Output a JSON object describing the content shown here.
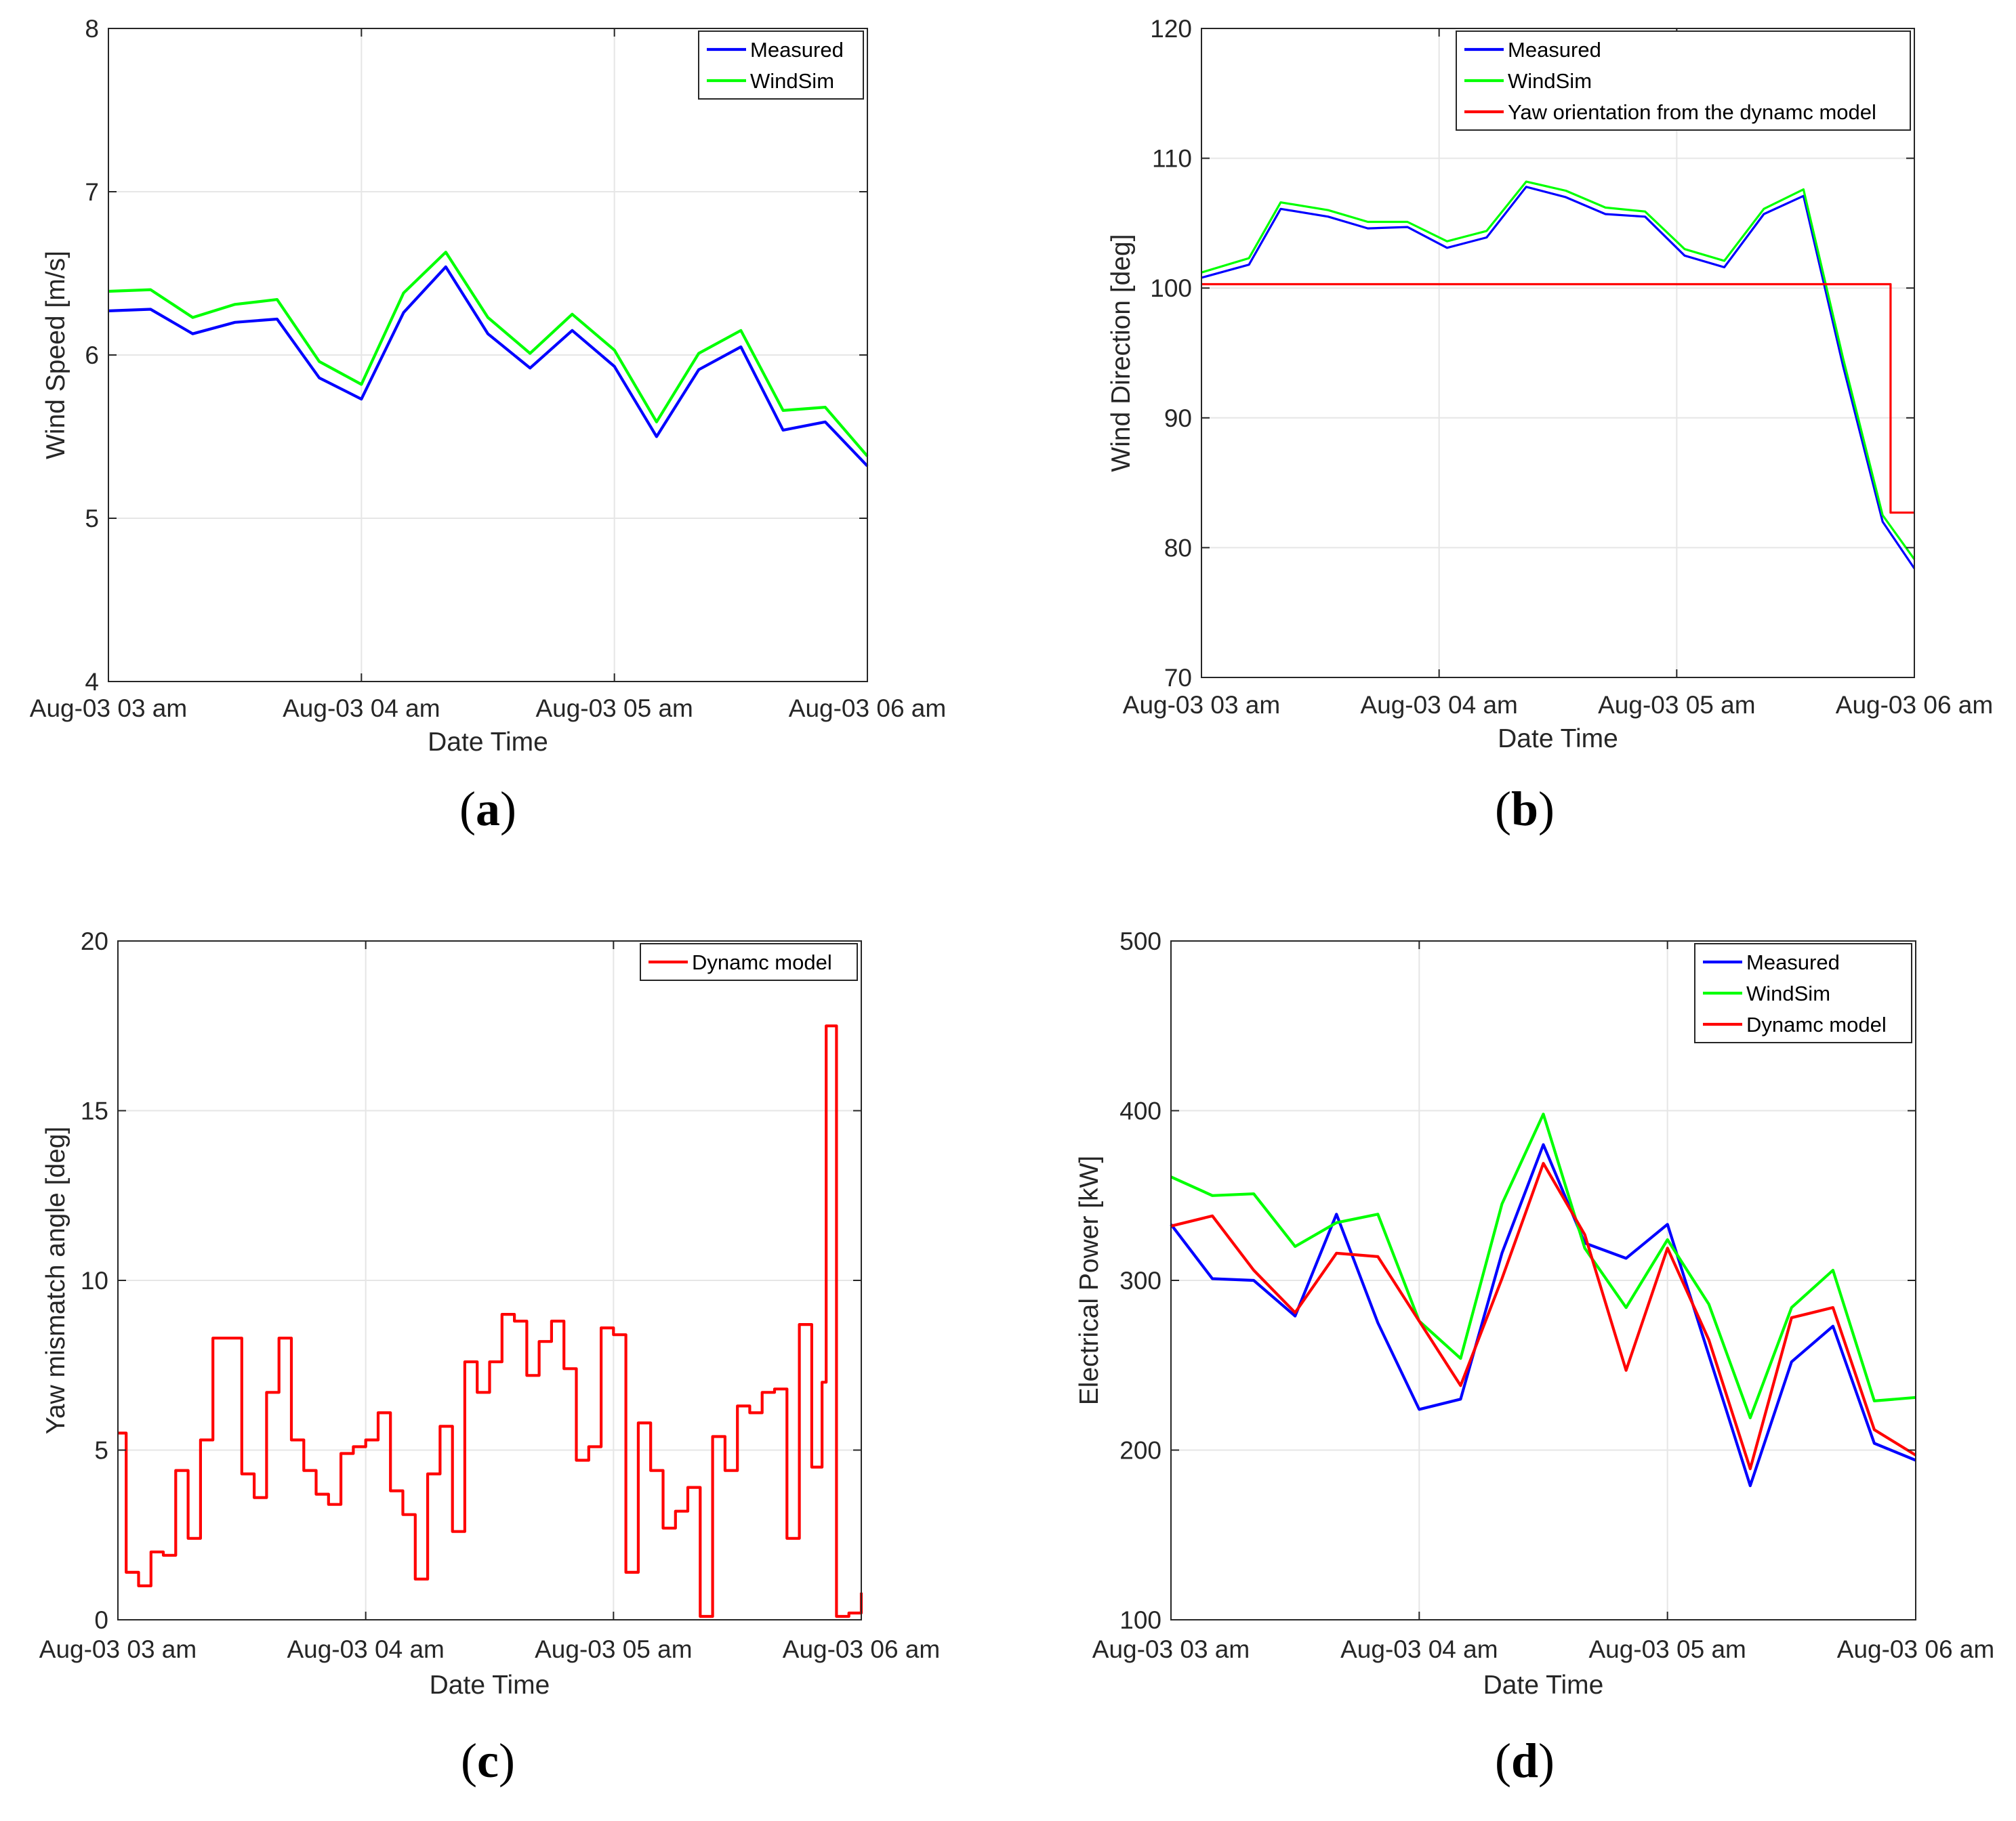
{
  "chart_data": [
    {
      "panel_label": "a",
      "type": "line",
      "xlabel": "Date Time",
      "ylabel": "Wind Speed [m/s]",
      "xlim": [
        0,
        180
      ],
      "ylim": [
        4,
        8
      ],
      "x_ticks": [
        {
          "value": 0,
          "label": "Aug-03 03 am"
        },
        {
          "value": 60,
          "label": "Aug-03 04 am"
        },
        {
          "value": 120,
          "label": "Aug-03 05 am"
        },
        {
          "value": 180,
          "label": "Aug-03 06 am"
        }
      ],
      "y_ticks": [
        4,
        5,
        6,
        7,
        8
      ],
      "grid": true,
      "legend_position": "top-right",
      "x": [
        0,
        10,
        20,
        30,
        40,
        50,
        60,
        70,
        80,
        90,
        100,
        110,
        120,
        130,
        140,
        150,
        160,
        170,
        180
      ],
      "series": [
        {
          "name": "Measured",
          "color": "#0000ff",
          "values": [
            6.27,
            6.28,
            6.13,
            6.2,
            6.22,
            5.86,
            5.73,
            6.26,
            6.54,
            6.13,
            5.92,
            6.15,
            5.93,
            5.5,
            5.91,
            6.05,
            5.54,
            5.59,
            5.32
          ]
        },
        {
          "name": "WindSim",
          "color": "#00ff00",
          "values": [
            6.39,
            6.4,
            6.23,
            6.31,
            6.34,
            5.96,
            5.82,
            6.38,
            6.63,
            6.23,
            6.01,
            6.25,
            6.03,
            5.59,
            6.01,
            6.15,
            5.66,
            5.68,
            5.38
          ]
        }
      ]
    },
    {
      "panel_label": "b",
      "type": "line",
      "xlabel": "Date Time",
      "ylabel": "Wind Direction [deg]",
      "xlim": [
        0,
        180
      ],
      "ylim": [
        70,
        120
      ],
      "x_ticks": [
        {
          "value": 0,
          "label": "Aug-03 03 am"
        },
        {
          "value": 60,
          "label": "Aug-03 04 am"
        },
        {
          "value": 120,
          "label": "Aug-03 05 am"
        },
        {
          "value": 180,
          "label": "Aug-03 06 am"
        }
      ],
      "y_ticks": [
        70,
        80,
        90,
        100,
        110,
        120
      ],
      "grid": true,
      "legend_position": "top-right",
      "series": [
        {
          "name": "Measured",
          "color": "#0000ff",
          "x": [
            0,
            12,
            20,
            32,
            42,
            52,
            62,
            72,
            82,
            92,
            102,
            112,
            122,
            132,
            142,
            152,
            162,
            172,
            180
          ],
          "values": [
            100.8,
            101.8,
            106.1,
            105.5,
            104.6,
            104.7,
            103.1,
            103.9,
            107.8,
            107.0,
            105.7,
            105.5,
            102.5,
            101.6,
            105.7,
            107.1,
            94.0,
            82.0,
            78.4
          ]
        },
        {
          "name": "WindSim",
          "color": "#00ff00",
          "x": [
            0,
            12,
            20,
            32,
            42,
            52,
            62,
            72,
            82,
            92,
            102,
            112,
            122,
            132,
            142,
            152,
            162,
            172,
            180
          ],
          "values": [
            101.2,
            102.3,
            106.6,
            106.0,
            105.1,
            105.1,
            103.6,
            104.4,
            108.2,
            107.5,
            106.2,
            105.9,
            103.0,
            102.1,
            106.1,
            107.6,
            94.6,
            82.5,
            79.1
          ]
        },
        {
          "name": "Yaw orientation from the dynamc model",
          "color": "#ff0000",
          "x": [
            0,
            174,
            174,
            180
          ],
          "values": [
            100.3,
            100.3,
            82.7,
            82.7
          ]
        }
      ]
    },
    {
      "panel_label": "c",
      "type": "line",
      "xlabel": "Date Time",
      "ylabel": "Yaw mismatch angle [deg]",
      "xlim": [
        0,
        180
      ],
      "ylim": [
        0,
        20
      ],
      "x_ticks": [
        {
          "value": 0,
          "label": "Aug-03 03 am"
        },
        {
          "value": 60,
          "label": "Aug-03 04 am"
        },
        {
          "value": 120,
          "label": "Aug-03 05 am"
        },
        {
          "value": 180,
          "label": "Aug-03 06 am"
        }
      ],
      "y_ticks": [
        0,
        5,
        10,
        15,
        20
      ],
      "grid": true,
      "legend_position": "top-right",
      "step": true,
      "series": [
        {
          "name": "Dynamc model",
          "color": "#ff0000",
          "x": [
            0,
            2,
            5,
            8,
            11,
            14,
            17,
            20,
            23,
            27,
            30,
            33,
            36,
            39,
            42,
            45,
            48,
            51,
            54,
            57,
            60,
            63,
            66,
            69,
            72,
            75,
            78,
            81,
            84,
            87,
            90,
            93,
            96,
            99,
            102,
            105,
            108,
            111,
            114,
            117,
            120,
            123,
            126,
            129,
            132,
            135,
            138,
            141,
            144,
            147,
            150,
            153,
            156,
            159,
            162,
            165,
            168,
            170.5,
            171.5,
            174,
            177,
            180
          ],
          "values": [
            5.5,
            1.4,
            1.0,
            2.0,
            1.9,
            4.4,
            2.4,
            5.3,
            8.3,
            8.3,
            4.3,
            3.6,
            6.7,
            8.3,
            5.3,
            4.4,
            3.7,
            3.4,
            4.9,
            5.1,
            5.3,
            6.1,
            3.8,
            3.1,
            1.2,
            4.3,
            5.7,
            2.6,
            7.6,
            6.7,
            7.6,
            9.0,
            8.8,
            7.2,
            8.2,
            8.8,
            7.4,
            4.7,
            5.1,
            8.6,
            8.4,
            1.4,
            5.8,
            4.4,
            2.7,
            3.2,
            3.9,
            0.1,
            5.4,
            4.4,
            6.3,
            6.1,
            6.7,
            6.8,
            2.4,
            8.7,
            4.5,
            7.0,
            17.5,
            0.1,
            0.2,
            0.8
          ]
        }
      ]
    },
    {
      "panel_label": "d",
      "type": "line",
      "xlabel": "Date Time",
      "ylabel": "Electrical Power [kW]",
      "xlim": [
        0,
        180
      ],
      "ylim": [
        100,
        500
      ],
      "x_ticks": [
        {
          "value": 0,
          "label": "Aug-03 03 am"
        },
        {
          "value": 60,
          "label": "Aug-03 04 am"
        },
        {
          "value": 120,
          "label": "Aug-03 05 am"
        },
        {
          "value": 180,
          "label": "Aug-03 06 am"
        }
      ],
      "y_ticks": [
        100,
        200,
        300,
        400,
        500
      ],
      "grid": true,
      "legend_position": "top-right",
      "x": [
        0,
        10,
        20,
        30,
        40,
        50,
        60,
        70,
        80,
        90,
        100,
        110,
        120,
        130,
        140,
        150,
        160,
        170,
        180
      ],
      "series": [
        {
          "name": "Measured",
          "color": "#0000ff",
          "values": [
            333,
            301,
            300,
            279,
            339,
            275,
            224,
            230,
            316,
            380,
            322,
            313,
            333,
            256,
            179,
            252,
            273,
            204,
            194
          ]
        },
        {
          "name": "WindSim",
          "color": "#00ff00",
          "values": [
            361,
            350,
            351,
            320,
            334,
            339,
            276,
            254,
            345,
            398,
            319,
            284,
            324,
            286,
            219,
            284,
            306,
            229,
            231
          ]
        },
        {
          "name": "Dynamc model",
          "color": "#ff0000",
          "values": [
            332,
            338,
            306,
            281,
            316,
            314,
            276,
            238,
            301,
            369,
            327,
            247,
            319,
            265,
            189,
            278,
            284,
            212,
            197
          ]
        }
      ]
    }
  ]
}
